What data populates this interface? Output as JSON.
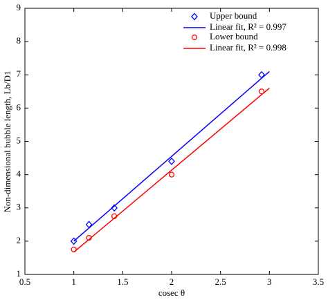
{
  "chart_data": {
    "type": "scatter",
    "xlabel": "cosec θ",
    "ylabel": "Non-dimensional bubble length, Lb/D1",
    "xlim": [
      0.5,
      3.5
    ],
    "xticks": [
      0.5,
      1,
      1.5,
      2,
      2.5,
      3,
      3.5
    ],
    "ylim": [
      1,
      9
    ],
    "yticks": [
      1,
      2,
      3,
      4,
      5,
      6,
      7,
      8,
      9
    ],
    "legend": "upper right",
    "series": [
      {
        "name": "Upper bound",
        "color": "#0000ff",
        "style": "diamond",
        "x": [
          1,
          1.155,
          1.414,
          2,
          2.92
        ],
        "values": [
          2.0,
          2.5,
          3.0,
          4.4,
          7.0
        ]
      },
      {
        "name": "Linear fit, R² = 0.997",
        "color": "#0000ff",
        "style": "line",
        "x": [
          1,
          3
        ],
        "values": [
          2.0,
          7.1
        ]
      },
      {
        "name": "Lower bound",
        "color": "#ff0000",
        "style": "circle",
        "x": [
          1,
          1.155,
          1.414,
          2,
          2.92
        ],
        "values": [
          1.75,
          2.1,
          2.75,
          4.0,
          6.5
        ]
      },
      {
        "name": "Linear fit, R² = 0.998",
        "color": "#ff0000",
        "style": "line",
        "x": [
          1,
          3
        ],
        "values": [
          1.67,
          6.6
        ]
      }
    ]
  }
}
